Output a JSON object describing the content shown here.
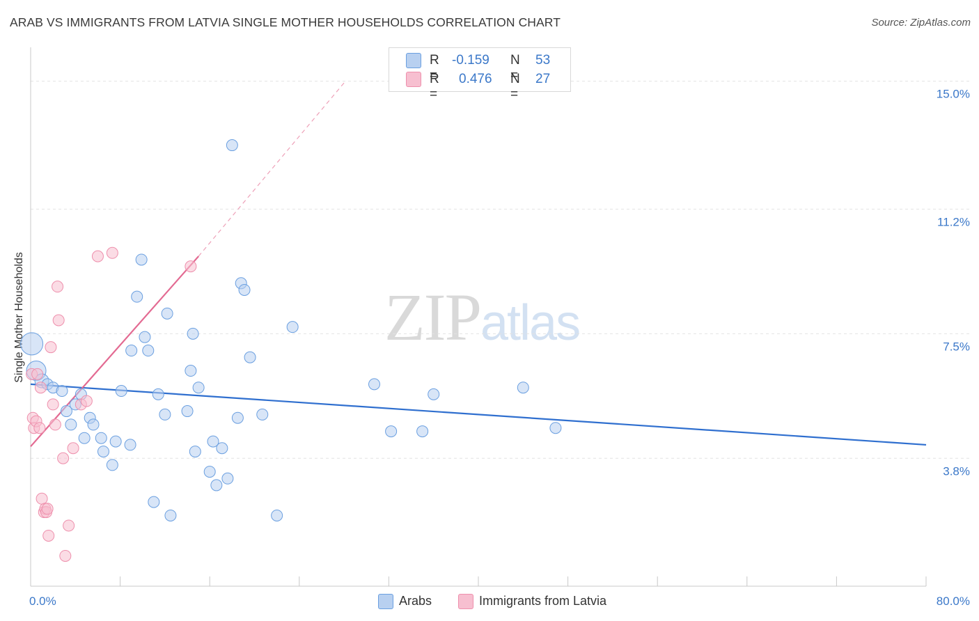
{
  "header": {
    "title": "ARAB VS IMMIGRANTS FROM LATVIA SINGLE MOTHER HOUSEHOLDS CORRELATION CHART",
    "source": "Source: ZipAtlas.com"
  },
  "watermark": {
    "zip": "ZIP",
    "atlas": "atlas"
  },
  "legend": {
    "rows": [
      {
        "r_label": "R =",
        "r_value": "-0.159",
        "n_label": "N =",
        "n_value": "53",
        "color": "#b8d0f0"
      },
      {
        "r_label": "R =",
        "r_value": "0.476",
        "n_label": "N =",
        "n_value": "27",
        "color": "#f7bfd0"
      }
    ]
  },
  "bottom_legend": [
    {
      "label": "Arabs",
      "color": "#b8d0f0"
    },
    {
      "label": "Immigrants from Latvia",
      "color": "#f7bfd0"
    }
  ],
  "chart_data": {
    "type": "scatter",
    "title": "ARAB VS IMMIGRANTS FROM LATVIA SINGLE MOTHER HOUSEHOLDS CORRELATION CHART",
    "xlabel": "",
    "ylabel": "Single Mother Households",
    "xlim": [
      0,
      80
    ],
    "ylim": [
      0,
      15.8
    ],
    "x_tick_labels": [
      "0.0%",
      "80.0%"
    ],
    "y_ticks": [
      3.8,
      7.5,
      11.2,
      15.0
    ],
    "y_tick_labels": [
      "3.8%",
      "7.5%",
      "11.2%",
      "15.0%"
    ],
    "grid": "horizontal dashed",
    "series": [
      {
        "name": "Arabs",
        "color": "#6a9fe0",
        "fill": "#b8d0f0",
        "x": [
          0.1,
          0.5,
          1.0,
          1.5,
          2.0,
          2.8,
          3.2,
          3.6,
          4.0,
          4.5,
          4.8,
          5.3,
          5.6,
          6.3,
          6.5,
          7.3,
          7.6,
          8.1,
          8.9,
          9.0,
          9.5,
          9.9,
          10.2,
          10.5,
          11.0,
          11.4,
          12.0,
          12.2,
          12.5,
          14.0,
          14.3,
          14.5,
          14.7,
          15.0,
          16.0,
          16.3,
          16.6,
          17.1,
          17.6,
          18.0,
          18.5,
          18.8,
          19.1,
          19.6,
          20.7,
          22.0,
          23.4,
          30.7,
          32.2,
          35.0,
          36.0,
          44.0,
          46.9
        ],
        "y": [
          7.2,
          6.4,
          6.1,
          6.0,
          5.9,
          5.8,
          5.2,
          4.8,
          5.4,
          5.7,
          4.4,
          5.0,
          4.8,
          4.4,
          4.0,
          3.6,
          4.3,
          5.8,
          4.2,
          7.0,
          8.6,
          9.7,
          7.4,
          7.0,
          2.5,
          5.7,
          5.1,
          8.1,
          2.1,
          5.2,
          6.4,
          7.5,
          4.0,
          5.9,
          3.4,
          4.3,
          3.0,
          4.1,
          3.2,
          13.1,
          5.0,
          9.0,
          8.8,
          6.8,
          5.1,
          2.1,
          7.7,
          6.0,
          4.6,
          4.6,
          5.7,
          5.9,
          4.7
        ],
        "r": 0.159,
        "r_sign": -1,
        "n": 53
      },
      {
        "name": "Immigrants from Latvia",
        "color": "#ee8fac",
        "fill": "#f7bfd0",
        "x": [
          0.1,
          0.2,
          0.3,
          0.5,
          0.6,
          0.8,
          0.9,
          1.0,
          1.2,
          1.3,
          1.4,
          1.5,
          1.6,
          1.8,
          2.0,
          2.2,
          2.4,
          2.5,
          2.9,
          3.1,
          3.4,
          3.8,
          4.5,
          5.0,
          6.0,
          7.3,
          14.3
        ],
        "y": [
          6.3,
          5.0,
          4.7,
          4.9,
          6.3,
          4.7,
          5.9,
          2.6,
          2.2,
          2.3,
          2.2,
          2.3,
          1.5,
          7.1,
          5.4,
          4.8,
          8.9,
          7.9,
          3.8,
          0.9,
          1.8,
          4.1,
          5.4,
          5.5,
          9.8,
          9.9,
          9.5
        ],
        "r": 0.476,
        "n": 27
      }
    ],
    "trendlines": [
      {
        "series": "Arabs",
        "x": [
          0,
          80
        ],
        "y": [
          6.0,
          4.2
        ]
      },
      {
        "series": "Immigrants from Latvia",
        "x": [
          0,
          15
        ],
        "y": [
          4.15,
          9.8
        ],
        "extended_to": [
          28,
          14.95
        ]
      }
    ]
  }
}
